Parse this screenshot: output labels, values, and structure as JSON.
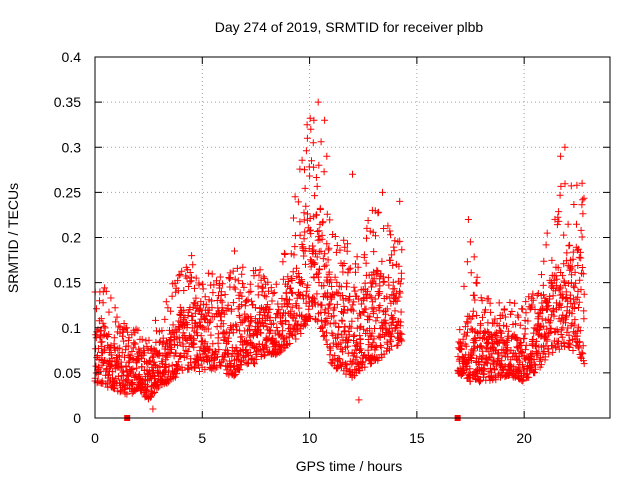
{
  "chart_data": {
    "type": "scatter",
    "title": "Day 274 of 2019, SRMTID for receiver plbb",
    "xlabel": "GPS time / hours",
    "ylabel": "SRMTID / TECUs",
    "xlim": [
      0,
      24
    ],
    "ylim": [
      0,
      0.4
    ],
    "xticks": [
      0,
      5,
      10,
      15,
      20
    ],
    "xtick_labels": [
      "0",
      "5",
      "10",
      "15",
      "20"
    ],
    "yticks": [
      0,
      0.05,
      0.1,
      0.15,
      0.2,
      0.25,
      0.3,
      0.35,
      0.4
    ],
    "ytick_labels": [
      "0",
      "0.05",
      "0.1",
      "0.15",
      "0.2",
      "0.25",
      "0.3",
      "0.35",
      "0.4"
    ],
    "grid": true,
    "marker": "plus",
    "color": "#ff0000",
    "gap_markers": {
      "x": [
        1.5,
        16.9
      ],
      "y": 0
    },
    "data_gap": [
      14.3,
      16.9
    ],
    "series": [
      {
        "name": "SRMTID",
        "envelope_x": [
          0,
          0.5,
          1.0,
          1.5,
          2.0,
          2.5,
          3.0,
          3.5,
          4.0,
          4.5,
          5.0,
          5.5,
          6.0,
          6.5,
          7.0,
          7.5,
          8.0,
          8.5,
          9.0,
          9.5,
          10.0,
          10.5,
          11.0,
          11.5,
          12.0,
          12.5,
          13.0,
          13.5,
          14.0,
          14.3,
          16.9,
          17.5,
          18.0,
          18.5,
          19.0,
          19.5,
          20.0,
          20.5,
          21.0,
          21.5,
          22.0,
          22.5,
          22.8
        ],
        "envelope_low": [
          0.04,
          0.035,
          0.03,
          0.025,
          0.03,
          0.02,
          0.035,
          0.04,
          0.05,
          0.055,
          0.05,
          0.055,
          0.05,
          0.045,
          0.06,
          0.06,
          0.07,
          0.07,
          0.08,
          0.09,
          0.11,
          0.1,
          0.06,
          0.05,
          0.045,
          0.055,
          0.06,
          0.07,
          0.08,
          0.08,
          0.05,
          0.04,
          0.04,
          0.04,
          0.045,
          0.045,
          0.04,
          0.05,
          0.06,
          0.07,
          0.08,
          0.07,
          0.06
        ],
        "envelope_high": [
          0.14,
          0.15,
          0.12,
          0.1,
          0.1,
          0.09,
          0.12,
          0.15,
          0.17,
          0.17,
          0.17,
          0.16,
          0.17,
          0.17,
          0.18,
          0.17,
          0.16,
          0.15,
          0.2,
          0.28,
          0.34,
          0.32,
          0.22,
          0.2,
          0.19,
          0.21,
          0.24,
          0.22,
          0.2,
          0.23,
          0.1,
          0.2,
          0.14,
          0.13,
          0.13,
          0.13,
          0.13,
          0.15,
          0.2,
          0.25,
          0.28,
          0.27,
          0.25
        ],
        "peak_points": [
          {
            "x": 10.4,
            "y": 0.35
          },
          {
            "x": 10.2,
            "y": 0.33
          },
          {
            "x": 9.9,
            "y": 0.31
          },
          {
            "x": 10.7,
            "y": 0.33
          },
          {
            "x": 10.8,
            "y": 0.29
          },
          {
            "x": 12.0,
            "y": 0.27
          },
          {
            "x": 13.4,
            "y": 0.25
          },
          {
            "x": 14.2,
            "y": 0.24
          },
          {
            "x": 21.7,
            "y": 0.29
          },
          {
            "x": 21.9,
            "y": 0.3
          },
          {
            "x": 22.7,
            "y": 0.26
          },
          {
            "x": 17.4,
            "y": 0.22
          },
          {
            "x": 12.3,
            "y": 0.02
          },
          {
            "x": 2.7,
            "y": 0.01
          },
          {
            "x": 4.5,
            "y": 0.18
          },
          {
            "x": 6.5,
            "y": 0.185
          }
        ]
      }
    ]
  }
}
